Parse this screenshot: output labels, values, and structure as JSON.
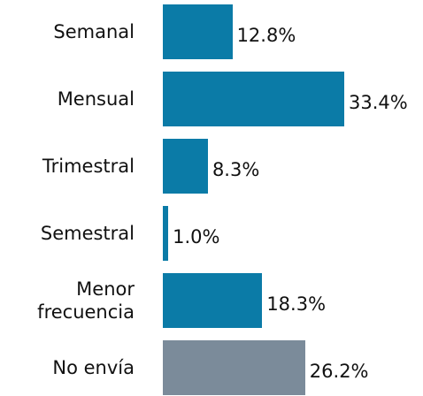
{
  "chart_data": {
    "type": "bar",
    "orientation": "horizontal",
    "categories": [
      "Semanal",
      "Mensual",
      "Trimestral",
      "Semestral",
      "Menor frecuencia",
      "No envía"
    ],
    "values": [
      12.8,
      33.4,
      8.3,
      1.0,
      18.3,
      26.2
    ],
    "value_labels": [
      "12.8%",
      "33.4%",
      "8.3%",
      "1.0%",
      "18.3%",
      "26.2%"
    ],
    "colors": [
      "#0b7ba7",
      "#0b7ba7",
      "#0b7ba7",
      "#0b7ba7",
      "#0b7ba7",
      "#7b8b9a"
    ]
  }
}
